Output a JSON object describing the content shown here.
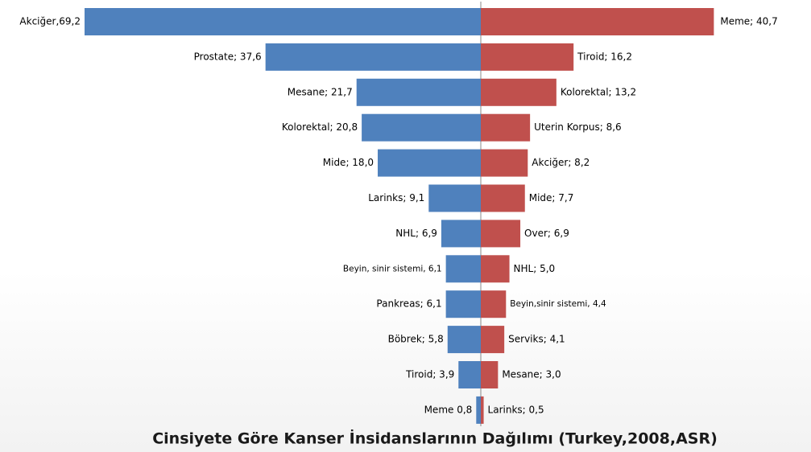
{
  "chart_data": {
    "type": "butterfly",
    "title": "Cinsiyete Göre Kanser İnsidanslarının Dağılımı (Turkey,2008,ASR)",
    "series": [
      {
        "color": "#4f81bd",
        "categories": [
          "Akciğer",
          "Prostate",
          "Mesane",
          "Kolorektal",
          "Mide",
          "Larinks",
          "NHL",
          "Beyin, sinir sistemi",
          "Pankreas",
          "Böbrek",
          "Tiroid",
          "Meme"
        ],
        "values": [
          69.2,
          37.6,
          21.7,
          20.8,
          18.0,
          9.1,
          6.9,
          6.1,
          6.1,
          5.8,
          3.9,
          0.8
        ],
        "value_labels": [
          "Akciğer,69,2",
          "Prostate; 37,6",
          "Mesane; 21,7",
          "Kolorektal; 20,8",
          "Mide; 18,0",
          "Larinks; 9,1",
          "NHL; 6,9",
          "Beyin, sinir sistemi, 6,1",
          "Pankreas; 6,1",
          "Böbrek; 5,8",
          "Tiroid; 3,9",
          "Meme 0,8"
        ]
      },
      {
        "color": "#c0504d",
        "categories": [
          "Meme",
          "Tiroid",
          "Kolorektal",
          "Uterin Korpus",
          "Akciğer",
          "Mide",
          "Over",
          "NHL",
          "Beyin,sinir sistemi",
          "Serviks",
          "Mesane",
          "Larinks"
        ],
        "values": [
          40.7,
          16.2,
          13.2,
          8.6,
          8.2,
          7.7,
          6.9,
          5.0,
          4.4,
          4.1,
          3.0,
          0.5
        ],
        "value_labels": [
          "Meme; 40,7",
          "Tiroid; 16,2",
          "Kolorektal; 13,2",
          "Uterin  Korpus; 8,6",
          "Akciğer; 8,2",
          "Mide; 7,7",
          "Over; 6,9",
          "NHL; 5,0",
          "Beyin,sinir sistemi, 4,4",
          "Serviks; 4,1",
          "Mesane; 3,0",
          "Larinks; 0,5"
        ]
      }
    ]
  }
}
